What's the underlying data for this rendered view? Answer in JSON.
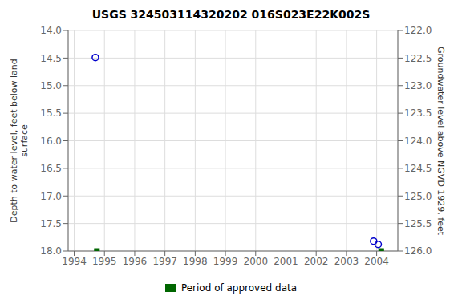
{
  "chart_data": {
    "type": "scatter",
    "title": "USGS 324503114320202 016S023E22K002S",
    "ylabel": "Depth to water level, feet below land\nsurface",
    "y2label": "Groundwater level above NGVD 1929, feet",
    "xlim": [
      1993.8,
      2004.7
    ],
    "xticks": [
      1994,
      1995,
      1996,
      1997,
      1998,
      1999,
      2000,
      2001,
      2002,
      2003,
      2004
    ],
    "ylim": [
      18.0,
      14.0
    ],
    "yticks": [
      {
        "value": 14.0,
        "label": "14.0"
      },
      14.5,
      {
        "value": 15.0,
        "label": "15.0"
      },
      15.5,
      {
        "value": 16.0,
        "label": "16.0"
      },
      16.5,
      {
        "value": 17.0,
        "label": "17.0"
      },
      17.5,
      {
        "value": 18.0,
        "label": "18.0"
      }
    ],
    "y2lim": [
      126.0,
      122.0
    ],
    "y2ticks": [
      {
        "value": 126.0,
        "label": "126.0"
      },
      125.5,
      {
        "value": 125.0,
        "label": "125.0"
      },
      124.5,
      {
        "value": 124.0,
        "label": "124.0"
      },
      123.5,
      {
        "value": 123.0,
        "label": "123.0"
      },
      122.5,
      {
        "value": 122.0,
        "label": "122.0"
      }
    ],
    "grid": true,
    "legend": "bottom",
    "series": [
      {
        "color": "#0000cc",
        "marker": "open_circle",
        "x": [
          1994.7,
          2003.9,
          2004.05
        ],
        "values": [
          14.49,
          17.82,
          17.88
        ]
      },
      {
        "name": "Period of approved data",
        "color": "#006600",
        "marker": "square",
        "x": [
          1994.75,
          2004.15
        ],
        "values": [
          18.0,
          18.0
        ]
      }
    ]
  }
}
